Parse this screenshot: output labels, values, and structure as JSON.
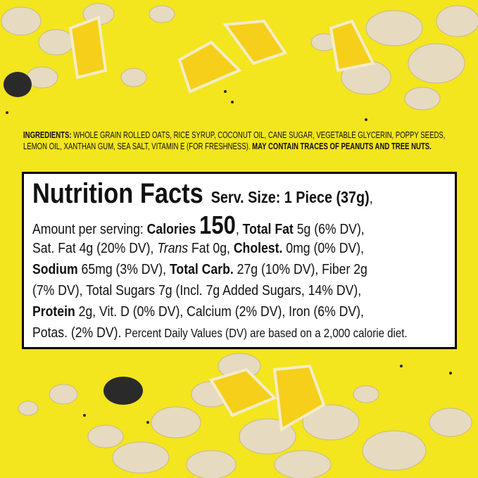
{
  "ingredients": {
    "label": "INGREDIENTS:",
    "text": " WHOLE GRAIN ROLLED OATS, RICE SYRUP, COCONUT OIL, CANE SUGAR, VEGETABLE GLYCERIN, POPPY SEEDS, LEMON OIL, XANTHAN GUM, SEA SALT, VITAMIN E (FOR FRESHNESS). ",
    "warning": "MAY CONTAIN TRACES OF PEANUTS AND TREE NUTS."
  },
  "nutrition": {
    "lines": [
      [
        {
          "t": "Nutrition Facts",
          "s": "title"
        },
        {
          "t": "  Serv. Size: 1 Piece (37g)",
          "s": "serv"
        },
        {
          "t": ",",
          "s": ""
        }
      ],
      [
        {
          "t": "Amount per serving: ",
          "s": ""
        },
        {
          "t": "Calories ",
          "s": "b"
        },
        {
          "t": "150",
          "s": "big"
        },
        {
          "t": ", ",
          "s": ""
        },
        {
          "t": "Total Fat",
          "s": "b"
        },
        {
          "t": " 5g (6% DV),",
          "s": ""
        }
      ],
      [
        {
          "t": "Sat. Fat 4g (20% DV), ",
          "s": ""
        },
        {
          "t": "Trans",
          "s": "i"
        },
        {
          "t": " Fat 0g, ",
          "s": ""
        },
        {
          "t": "Cholest.",
          "s": "b"
        },
        {
          "t": " 0mg (0% DV),",
          "s": ""
        }
      ],
      [
        {
          "t": "Sodium",
          "s": "b"
        },
        {
          "t": " 65mg (3% DV), ",
          "s": ""
        },
        {
          "t": "Total Carb.",
          "s": "b"
        },
        {
          "t": " 27g (10% DV), Fiber 2g",
          "s": ""
        }
      ],
      [
        {
          "t": "(7% DV), Total Sugars 7g (Incl. 7g Added Sugars, 14% DV),",
          "s": ""
        }
      ],
      [
        {
          "t": "Protein",
          "s": "b"
        },
        {
          "t": " 2g, Vit. D (0% DV), Calcium (2% DV), Iron (6% DV),",
          "s": ""
        }
      ],
      [
        {
          "t": "Potas. (2% DV). ",
          "s": ""
        },
        {
          "t": "Percent Daily Values (DV) are based on a 2,000 calorie diet.",
          "s": "small"
        }
      ]
    ]
  },
  "colors": {
    "background": "#f3e51e",
    "oat": "#e8dcc0",
    "lemon": "#f6cf1a",
    "seed": "#2a2a2a"
  }
}
